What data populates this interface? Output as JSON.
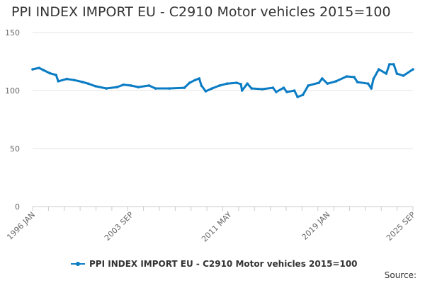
{
  "chart_data": {
    "type": "line",
    "title": "PPI INDEX IMPORT EU - C2910 Motor vehicles 2015=100",
    "xlabel": "",
    "ylabel": "",
    "ylim": [
      0,
      150
    ],
    "xlim": [
      "1996-01",
      "2025-09"
    ],
    "yticks": [
      "0",
      "50",
      "100",
      "150"
    ],
    "xticks": [
      "1996 JAN",
      "2003 SEP",
      "2011 MAY",
      "2019 JAN",
      "2025 SEP"
    ],
    "grid": "horizontal",
    "legend_position": "bottom",
    "color": "#0a7cc4",
    "series": [
      {
        "name": "PPI INDEX IMPORT EU - C2910 Motor vehicles 2015=100",
        "x": [
          "1996-01",
          "1996-07",
          "1996-11",
          "1997-05",
          "1997-11",
          "1998-01",
          "1998-09",
          "1999-04",
          "1999-12",
          "2000-05",
          "2000-12",
          "2001-10",
          "2002-08",
          "2003-02",
          "2003-09",
          "2004-04",
          "2005-02",
          "2005-08",
          "2006-09",
          "2007-11",
          "2008-04",
          "2008-09",
          "2009-01",
          "2009-03",
          "2009-07",
          "2010-01",
          "2010-08",
          "2011-03",
          "2011-12",
          "2012-04",
          "2012-05",
          "2012-10",
          "2013-02",
          "2013-12",
          "2014-10",
          "2015-01",
          "2015-08",
          "2015-11",
          "2016-06",
          "2016-09",
          "2017-02",
          "2017-07",
          "2018-05",
          "2018-08",
          "2019-01",
          "2019-09",
          "2020-07",
          "2021-02",
          "2021-05",
          "2022-03",
          "2022-06",
          "2022-08",
          "2023-01",
          "2023-08",
          "2023-11",
          "2024-03",
          "2024-06",
          "2024-12",
          "2025-09"
        ],
        "values": [
          118.3,
          119.5,
          117.7,
          115,
          113.4,
          108,
          110,
          109,
          107.3,
          106,
          103.7,
          101.8,
          103,
          105,
          104.3,
          103,
          104.3,
          101.8,
          101.8,
          102.4,
          106.7,
          109,
          110.4,
          104.3,
          99.4,
          101.8,
          104.3,
          106,
          106.7,
          105.5,
          100,
          106,
          101.8,
          101.2,
          102.4,
          98.8,
          102.4,
          98.8,
          100,
          94.5,
          96.3,
          104.3,
          106.7,
          110.4,
          106,
          108,
          112.2,
          111.6,
          107.3,
          106,
          101.8,
          110,
          118.3,
          114.6,
          122.6,
          122.6,
          114.6,
          112.8,
          118.3
        ]
      }
    ]
  },
  "source_label": "Source:"
}
